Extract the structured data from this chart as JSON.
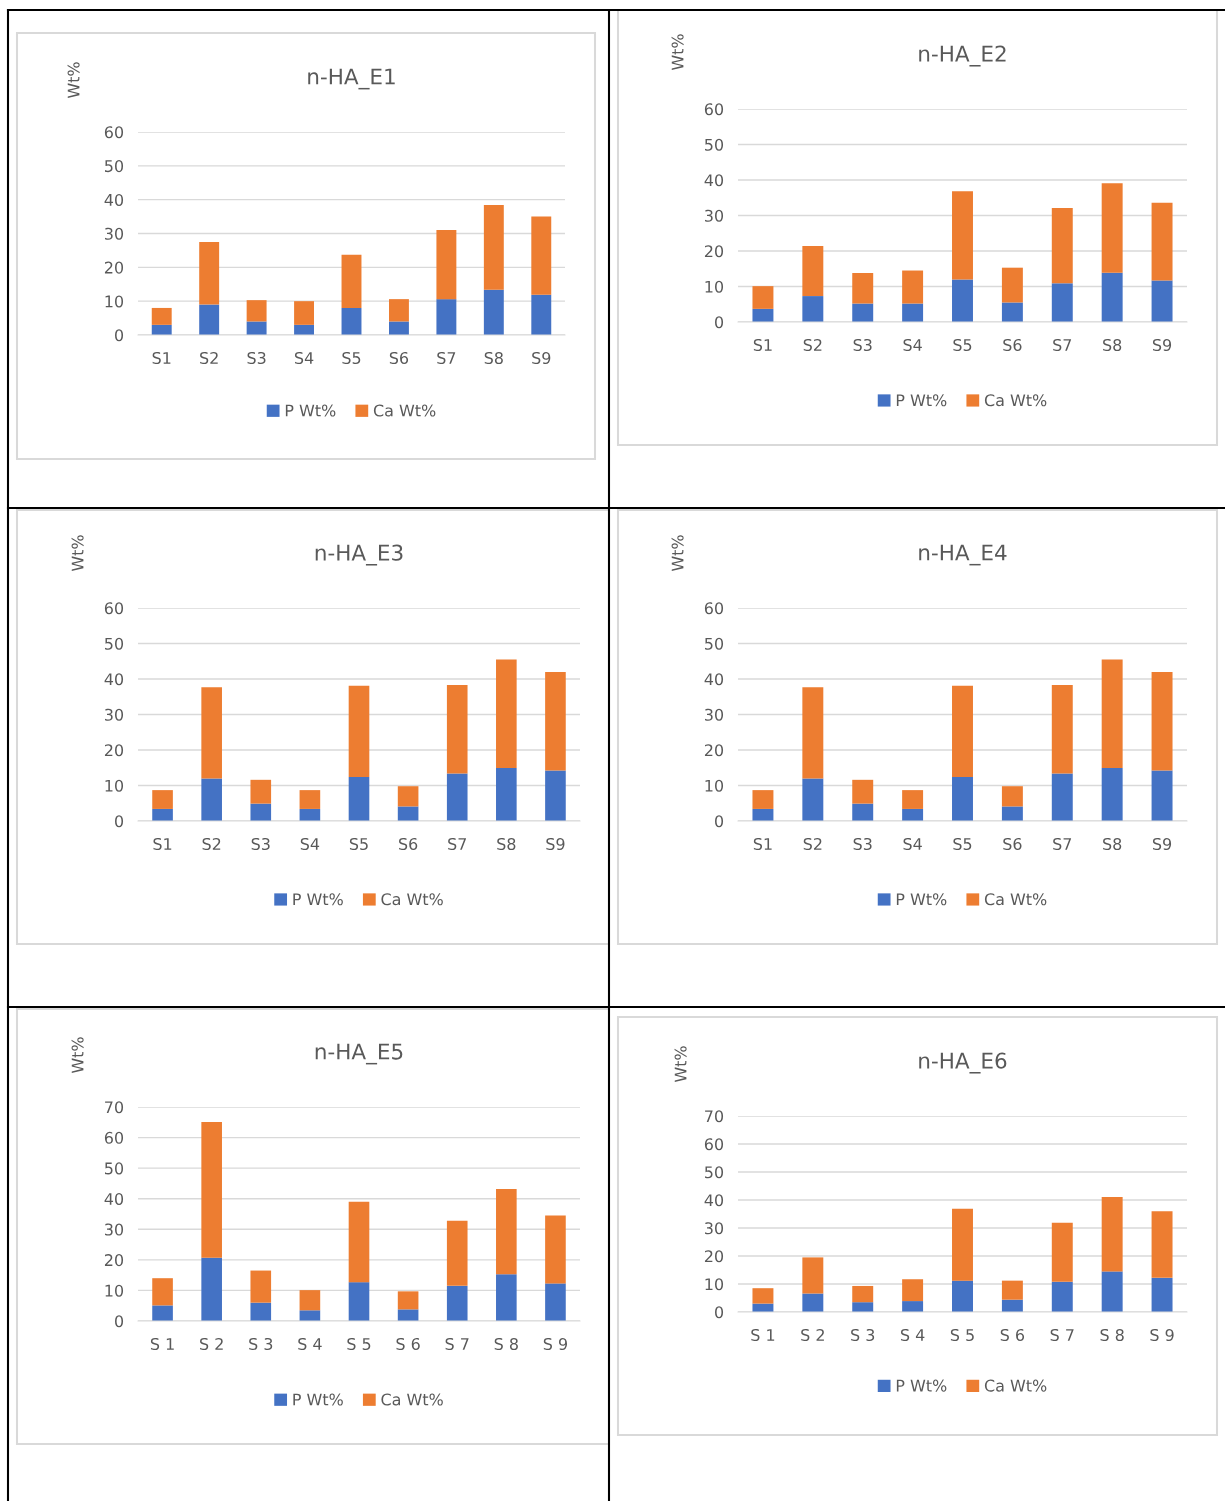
{
  "chart_data": [
    {
      "type": "bar",
      "title": "n-HA_E1",
      "ylabel": "Wt%",
      "categories": [
        "S1",
        "S2",
        "S3",
        "S4",
        "S5",
        "S6",
        "S7",
        "S8",
        "S9"
      ],
      "stacked": true,
      "ylim": [
        0,
        60
      ],
      "yticks": [
        0,
        10,
        20,
        30,
        40,
        50,
        60
      ],
      "grid": "y",
      "legend": "bottom",
      "series": [
        {
          "name": "P Wt%",
          "color": "#4472c4",
          "values": [
            3,
            9,
            4,
            3,
            8,
            4,
            10.6,
            13.4,
            11.9
          ]
        },
        {
          "name": "Ca Wt%",
          "color": "#ed7d31",
          "values": [
            5,
            18.5,
            6.3,
            7,
            15.7,
            6.6,
            20.4,
            25,
            23.1
          ]
        }
      ]
    },
    {
      "type": "bar",
      "title": "n-HA_E2",
      "ylabel": "Wt%",
      "categories": [
        "S1",
        "S2",
        "S3",
        "S4",
        "S5",
        "S6",
        "S7",
        "S8",
        "S9"
      ],
      "stacked": true,
      "ylim": [
        0,
        60
      ],
      "yticks": [
        0,
        10,
        20,
        30,
        40,
        50,
        60
      ],
      "grid": "y",
      "legend": "bottom",
      "series": [
        {
          "name": "P Wt%",
          "color": "#4472c4",
          "values": [
            3.7,
            7.3,
            5.2,
            5.2,
            12,
            5.5,
            10.9,
            13.9,
            11.7
          ]
        },
        {
          "name": "Ca Wt%",
          "color": "#ed7d31",
          "values": [
            6.4,
            14.1,
            8.6,
            9.3,
            24.8,
            9.8,
            21.2,
            25.2,
            21.9
          ]
        }
      ]
    },
    {
      "type": "bar",
      "title": "n-HA_E3",
      "ylabel": "Wt%",
      "categories": [
        "S1",
        "S2",
        "S3",
        "S4",
        "S5",
        "S6",
        "S7",
        "S8",
        "S9"
      ],
      "stacked": true,
      "ylim": [
        0,
        60
      ],
      "yticks": [
        0,
        10,
        20,
        30,
        40,
        50,
        60
      ],
      "grid": "y",
      "legend": "bottom",
      "series": [
        {
          "name": "P Wt%",
          "color": "#4472c4",
          "values": [
            3.4,
            12,
            4.9,
            3.4,
            12.4,
            4.1,
            13.4,
            14.9,
            14.2
          ]
        },
        {
          "name": "Ca Wt%",
          "color": "#ed7d31",
          "values": [
            5.3,
            25.7,
            6.7,
            5.3,
            25.7,
            5.7,
            24.9,
            30.6,
            27.8
          ]
        }
      ]
    },
    {
      "type": "bar",
      "title": "n-HA_E4",
      "ylabel": "Wt%",
      "categories": [
        "S1",
        "S2",
        "S3",
        "S4",
        "S5",
        "S6",
        "S7",
        "S8",
        "S9"
      ],
      "stacked": true,
      "ylim": [
        0,
        60
      ],
      "yticks": [
        0,
        10,
        20,
        30,
        40,
        50,
        60
      ],
      "grid": "y",
      "legend": "bottom",
      "series": [
        {
          "name": "P Wt%",
          "color": "#4472c4",
          "values": [
            3.4,
            12,
            4.9,
            3.4,
            12.4,
            4.1,
            13.4,
            14.9,
            14.2
          ]
        },
        {
          "name": "Ca Wt%",
          "color": "#ed7d31",
          "values": [
            5.3,
            25.7,
            6.7,
            5.3,
            25.7,
            5.7,
            24.9,
            30.6,
            27.8
          ]
        }
      ]
    },
    {
      "type": "bar",
      "title": "n-HA_E5",
      "ylabel": "Wt%",
      "categories": [
        "S 1",
        "S 2",
        "S 3",
        "S 4",
        "S 5",
        "S 6",
        "S 7",
        "S 8",
        "S 9"
      ],
      "stacked": true,
      "ylim": [
        0,
        70
      ],
      "yticks": [
        0,
        10,
        20,
        30,
        40,
        50,
        60,
        70
      ],
      "grid": "y",
      "legend": "bottom",
      "series": [
        {
          "name": "P Wt%",
          "color": "#4472c4",
          "values": [
            5.1,
            20.7,
            6,
            3.5,
            12.7,
            3.8,
            11.5,
            15.3,
            12.3
          ]
        },
        {
          "name": "Ca Wt%",
          "color": "#ed7d31",
          "values": [
            8.9,
            44.4,
            10.5,
            6.6,
            26.3,
            5.9,
            21.3,
            27.9,
            22.2
          ]
        }
      ]
    },
    {
      "type": "bar",
      "title": "n-HA_E6",
      "ylabel": "Wt%",
      "categories": [
        "S 1",
        "S 2",
        "S 3",
        "S 4",
        "S 5",
        "S 6",
        "S 7",
        "S 8",
        "S 9"
      ],
      "stacked": true,
      "ylim": [
        0,
        70
      ],
      "yticks": [
        0,
        10,
        20,
        30,
        40,
        50,
        60,
        70
      ],
      "grid": "y",
      "legend": "bottom",
      "series": [
        {
          "name": "P Wt%",
          "color": "#4472c4",
          "values": [
            3,
            6.6,
            3.5,
            3.9,
            11.2,
            4.4,
            10.8,
            14.5,
            12.2
          ]
        },
        {
          "name": "Ca Wt%",
          "color": "#ed7d31",
          "values": [
            5.5,
            12.9,
            5.8,
            7.8,
            25.7,
            6.8,
            21.1,
            26.6,
            23.8
          ]
        }
      ]
    }
  ]
}
